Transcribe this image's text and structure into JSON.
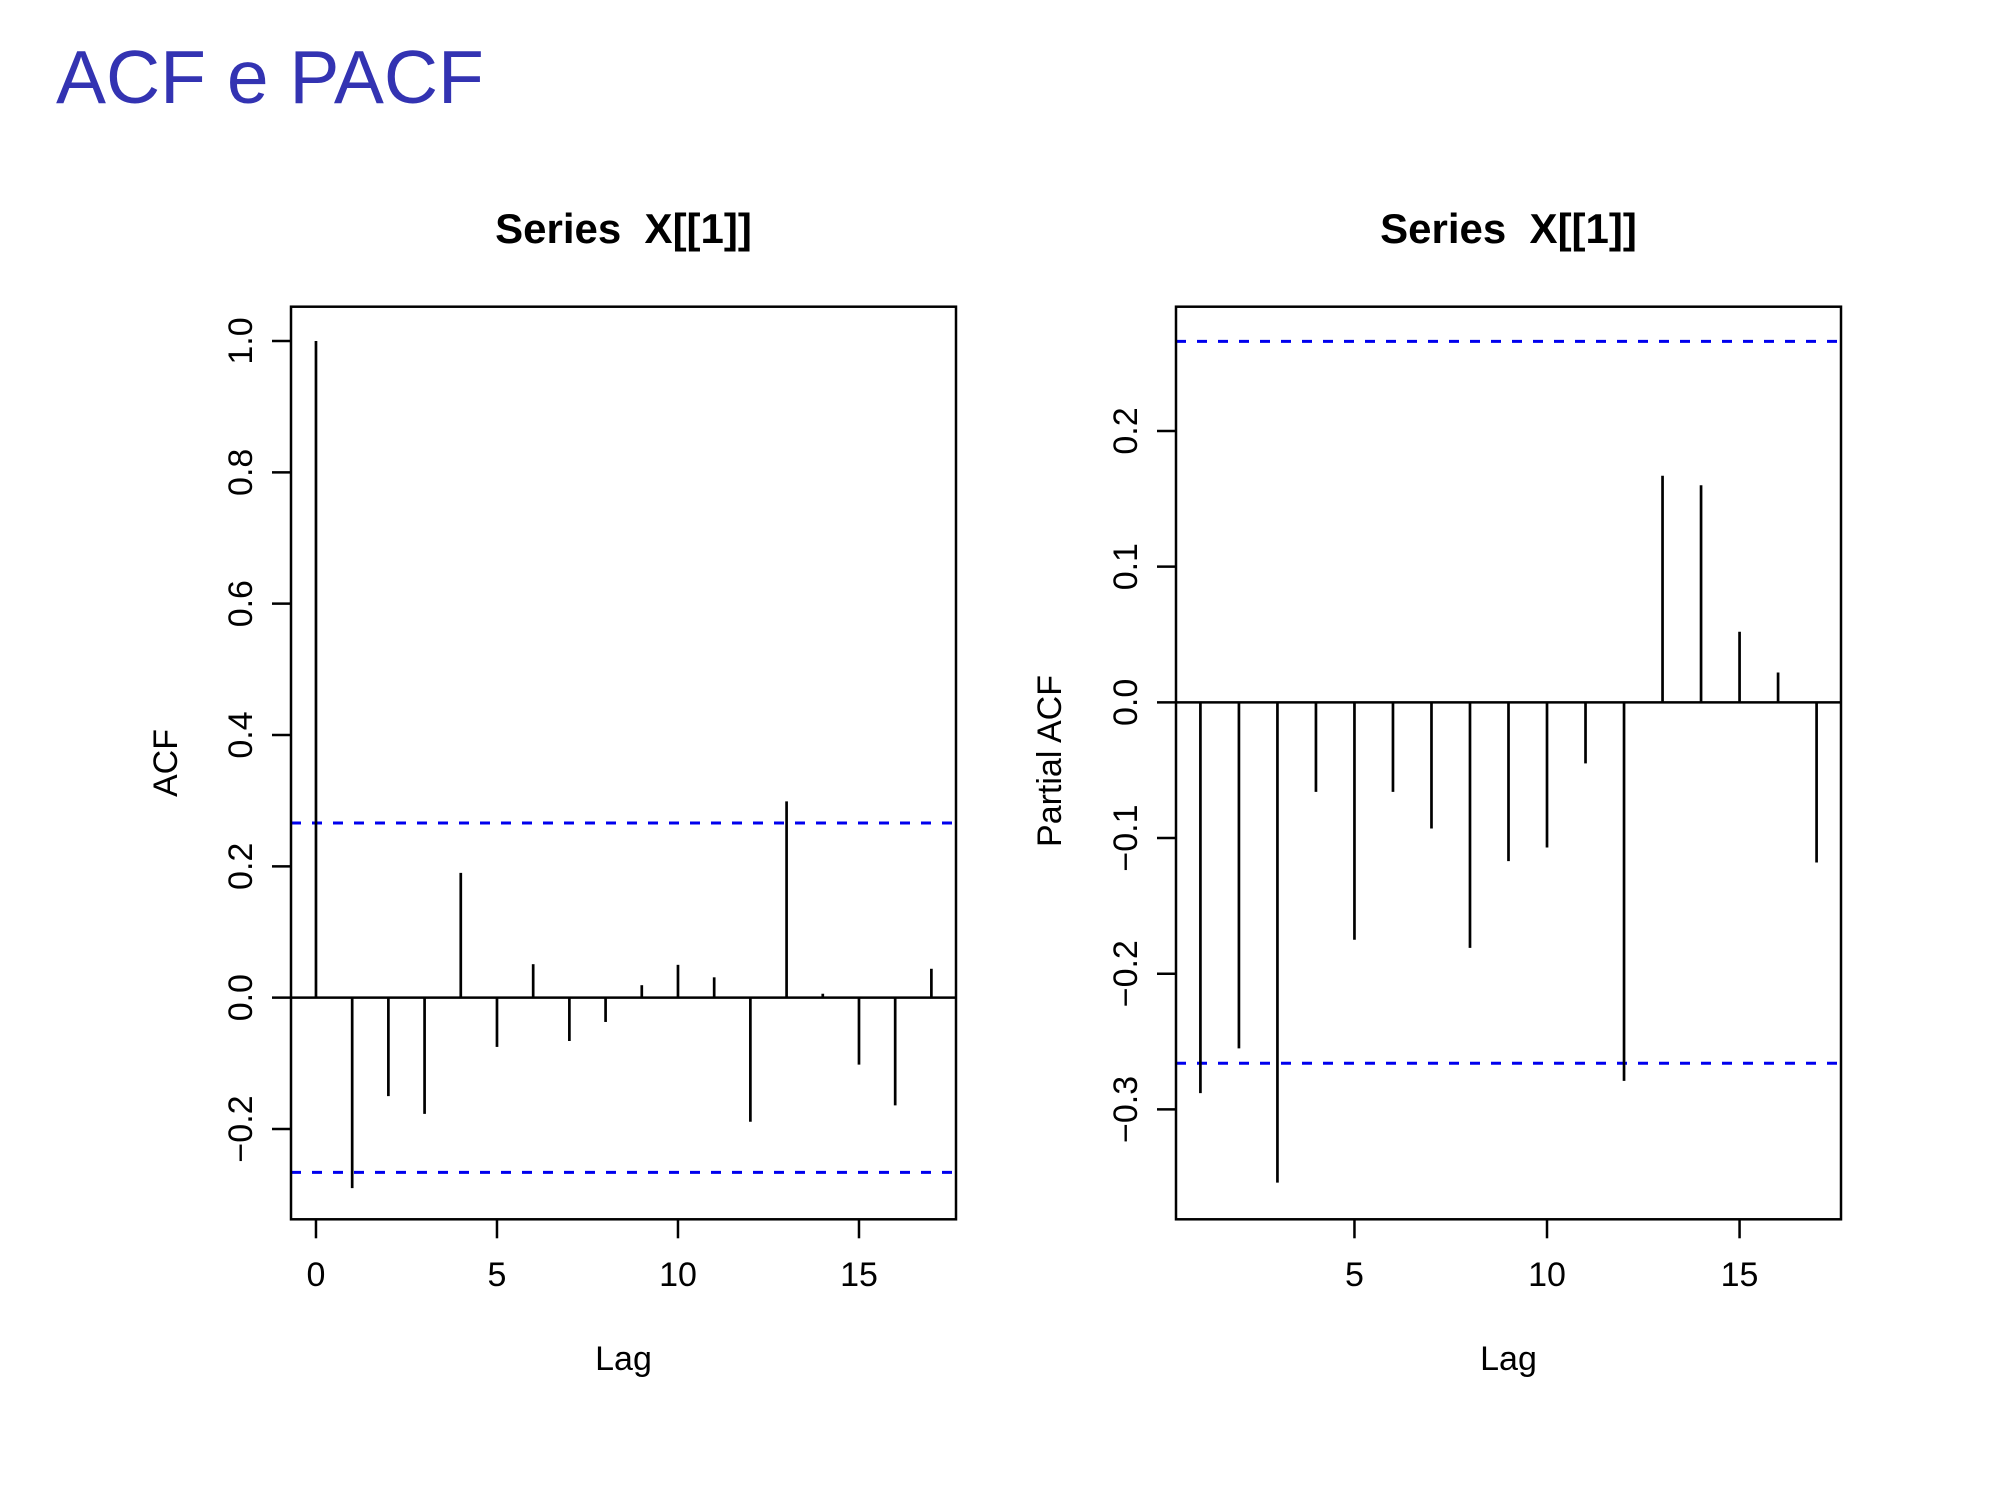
{
  "page": {
    "title": "ACF e PACF",
    "title_color": "#3333b2",
    "background": "#ffffff"
  },
  "chart_data": [
    {
      "type": "bar",
      "name": "acf",
      "title": "Series  X[[1]]",
      "xlabel": "Lag",
      "ylabel": "ACF",
      "lags": [
        0,
        1,
        2,
        3,
        4,
        5,
        6,
        7,
        8,
        9,
        10,
        11,
        12,
        13,
        14,
        15,
        16,
        17
      ],
      "values": [
        1.0,
        -0.29,
        -0.15,
        -0.177,
        0.19,
        -0.075,
        0.051,
        -0.066,
        -0.037,
        0.019,
        0.05,
        0.031,
        -0.189,
        0.299,
        0.006,
        -0.102,
        -0.164,
        0.044
      ],
      "conf_level": 0.266,
      "conf_color": "#0000ee",
      "bar_color": "#000000",
      "ylim": [
        -0.3375,
        1.0522
      ],
      "xlim": [
        -0.69,
        17.68
      ],
      "yticks": [
        1.0,
        0.8,
        0.6,
        0.4,
        0.2,
        0.0,
        -0.2
      ],
      "ytick_labels": [
        "1.0",
        "0.8",
        "0.6",
        "0.4",
        "0.2",
        "0.0",
        "−0.2"
      ],
      "xticks": [
        0,
        5,
        10,
        15
      ],
      "xtick_labels": [
        "0",
        "5",
        "10",
        "15"
      ],
      "grid": false,
      "legend": "none"
    },
    {
      "type": "bar",
      "name": "pacf",
      "title": "Series  X[[1]]",
      "xlabel": "Lag",
      "ylabel": "Partial ACF",
      "lags": [
        1,
        2,
        3,
        4,
        5,
        6,
        7,
        8,
        9,
        10,
        11,
        12,
        13,
        14,
        15,
        16,
        17
      ],
      "values": [
        -0.288,
        -0.255,
        -0.354,
        -0.066,
        -0.175,
        -0.066,
        -0.093,
        -0.181,
        -0.117,
        -0.107,
        -0.045,
        -0.279,
        0.167,
        0.16,
        0.052,
        0.022,
        -0.118
      ],
      "conf_level": 0.266,
      "conf_color": "#0000ee",
      "bar_color": "#000000",
      "ylim": [
        -0.381,
        0.2916
      ],
      "xlim": [
        0.366,
        17.634
      ],
      "yticks": [
        0.2,
        0.1,
        0.0,
        -0.1,
        -0.2,
        -0.3
      ],
      "ytick_labels": [
        "0.2",
        "0.1",
        "0.0",
        "−0.1",
        "−0.2",
        "−0.3"
      ],
      "xticks": [
        5,
        10,
        15
      ],
      "xtick_labels": [
        "5",
        "10",
        "15"
      ],
      "grid": false,
      "legend": "none"
    }
  ]
}
